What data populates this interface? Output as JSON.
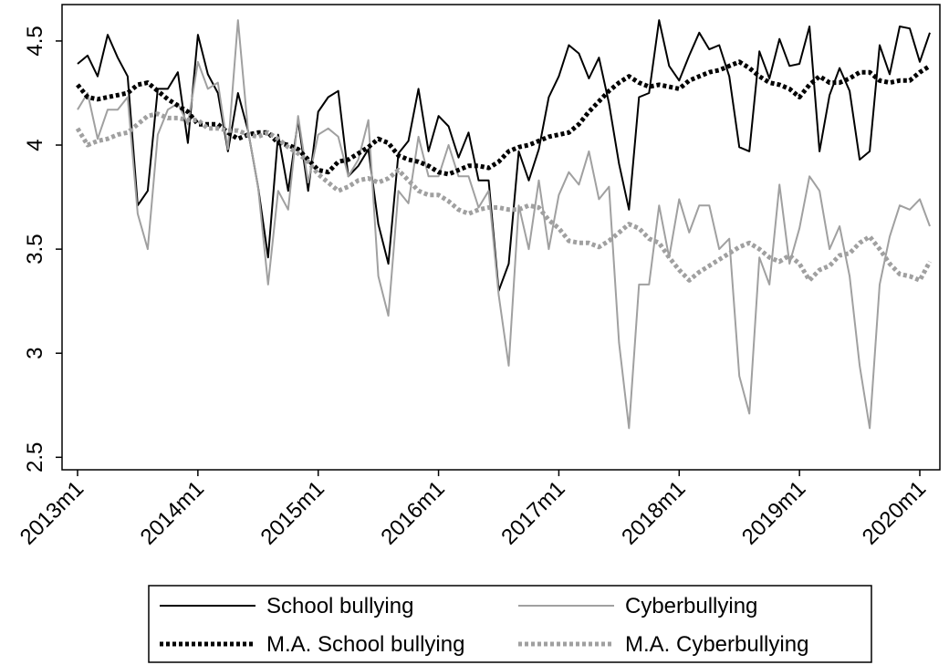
{
  "chart_data": {
    "type": "line",
    "categories": [
      "2013m1",
      null,
      null,
      null,
      null,
      null,
      null,
      null,
      null,
      null,
      null,
      null,
      "2014m1",
      null,
      null,
      null,
      null,
      null,
      null,
      null,
      null,
      null,
      null,
      null,
      "2015m1",
      null,
      null,
      null,
      null,
      null,
      null,
      null,
      null,
      null,
      null,
      null,
      "2016m1",
      null,
      null,
      null,
      null,
      null,
      null,
      null,
      null,
      null,
      null,
      null,
      "2017m1",
      null,
      null,
      null,
      null,
      null,
      null,
      null,
      null,
      null,
      null,
      null,
      "2018m1",
      null,
      null,
      null,
      null,
      null,
      null,
      null,
      null,
      null,
      null,
      null,
      "2019m1",
      null,
      null,
      null,
      null,
      null,
      null,
      null,
      null,
      null,
      null,
      null,
      "2020m1",
      null
    ],
    "ylim": [
      2.44,
      4.675
    ],
    "yticks": [
      2.5,
      3,
      3.5,
      4,
      4.5
    ],
    "grid": false,
    "legend": "bottom",
    "series": [
      {
        "name": "School bullying",
        "color": "#000000",
        "line_style": "solid",
        "values": [
          4.39,
          4.43,
          4.33,
          4.53,
          4.42,
          4.33,
          3.71,
          3.78,
          4.27,
          4.27,
          4.35,
          4.01,
          4.53,
          4.34,
          4.25,
          3.97,
          4.25,
          4.07,
          3.8,
          3.46,
          4.05,
          3.78,
          4.12,
          3.78,
          4.16,
          4.23,
          4.26,
          3.85,
          3.9,
          3.98,
          3.62,
          3.43,
          3.96,
          4.02,
          4.27,
          3.97,
          4.14,
          4.09,
          3.94,
          4.06,
          3.83,
          3.83,
          3.3,
          3.43,
          3.97,
          3.83,
          3.98,
          4.23,
          4.33,
          4.48,
          4.44,
          4.32,
          4.42,
          4.2,
          3.91,
          3.69,
          4.23,
          4.25,
          4.6,
          4.38,
          4.31,
          4.43,
          4.54,
          4.46,
          4.48,
          4.33,
          3.99,
          3.97,
          4.45,
          4.32,
          4.51,
          4.38,
          4.39,
          4.57,
          3.97,
          4.24,
          4.37,
          4.26,
          3.93,
          3.97,
          4.48,
          4.34,
          4.57,
          4.56,
          4.4,
          4.54
        ]
      },
      {
        "name": "Cyberbullying",
        "color": "#a0a0a0",
        "line_style": "solid",
        "values": [
          4.17,
          4.25,
          4.03,
          4.17,
          4.17,
          4.23,
          3.67,
          3.5,
          4.05,
          4.17,
          4.2,
          4.1,
          4.4,
          4.27,
          4.3,
          3.98,
          4.6,
          4.07,
          3.8,
          3.33,
          3.78,
          3.69,
          4.14,
          3.82,
          4.05,
          4.08,
          4.04,
          3.85,
          3.93,
          4.12,
          3.37,
          3.18,
          3.78,
          3.72,
          4.04,
          3.85,
          3.85,
          4.0,
          3.85,
          3.85,
          3.7,
          3.78,
          3.28,
          2.94,
          3.71,
          3.5,
          3.83,
          3.5,
          3.76,
          3.87,
          3.81,
          3.97,
          3.74,
          3.8,
          3.05,
          2.64,
          3.33,
          3.33,
          3.71,
          3.46,
          3.74,
          3.58,
          3.71,
          3.71,
          3.5,
          3.55,
          2.89,
          2.71,
          3.46,
          3.33,
          3.81,
          3.43,
          3.6,
          3.85,
          3.78,
          3.5,
          3.61,
          3.37,
          2.94,
          2.64,
          3.33,
          3.56,
          3.71,
          3.69,
          3.74,
          3.61
        ]
      },
      {
        "name": "M.A. School bullying",
        "color": "#000000",
        "line_style": "dotted",
        "values": [
          4.29,
          4.23,
          4.22,
          4.23,
          4.24,
          4.25,
          4.29,
          4.3,
          4.26,
          4.22,
          4.19,
          4.16,
          4.1,
          4.1,
          4.1,
          4.06,
          4.03,
          4.05,
          4.06,
          4.06,
          4.01,
          4.0,
          3.98,
          3.93,
          3.88,
          3.87,
          3.92,
          3.93,
          3.96,
          3.99,
          4.03,
          4.01,
          3.95,
          3.93,
          3.92,
          3.9,
          3.87,
          3.86,
          3.88,
          3.9,
          3.9,
          3.89,
          3.92,
          3.97,
          3.99,
          4.0,
          4.02,
          4.04,
          4.05,
          4.06,
          4.1,
          4.16,
          4.21,
          4.26,
          4.3,
          4.33,
          4.3,
          4.28,
          4.29,
          4.28,
          4.27,
          4.31,
          4.33,
          4.35,
          4.36,
          4.38,
          4.4,
          4.37,
          4.33,
          4.3,
          4.29,
          4.27,
          4.23,
          4.29,
          4.33,
          4.3,
          4.3,
          4.32,
          4.35,
          4.35,
          4.31,
          4.3,
          4.31,
          4.31,
          4.35,
          4.38
        ]
      },
      {
        "name": "M.A. Cyberbullying",
        "color": "#a0a0a0",
        "line_style": "dotted",
        "values": [
          4.08,
          4.0,
          4.02,
          4.03,
          4.05,
          4.06,
          4.1,
          4.14,
          4.15,
          4.13,
          4.13,
          4.12,
          4.12,
          4.08,
          4.08,
          4.07,
          4.07,
          4.05,
          4.04,
          4.06,
          4.03,
          3.99,
          3.96,
          3.92,
          3.86,
          3.82,
          3.78,
          3.8,
          3.83,
          3.84,
          3.82,
          3.84,
          3.88,
          3.83,
          3.78,
          3.76,
          3.76,
          3.73,
          3.69,
          3.67,
          3.69,
          3.7,
          3.7,
          3.69,
          3.69,
          3.71,
          3.7,
          3.64,
          3.6,
          3.54,
          3.53,
          3.53,
          3.51,
          3.54,
          3.58,
          3.62,
          3.6,
          3.55,
          3.53,
          3.46,
          3.4,
          3.35,
          3.39,
          3.42,
          3.45,
          3.48,
          3.51,
          3.53,
          3.5,
          3.46,
          3.44,
          3.47,
          3.43,
          3.35,
          3.4,
          3.42,
          3.47,
          3.48,
          3.53,
          3.56,
          3.5,
          3.43,
          3.38,
          3.37,
          3.35,
          3.44
        ]
      }
    ]
  }
}
